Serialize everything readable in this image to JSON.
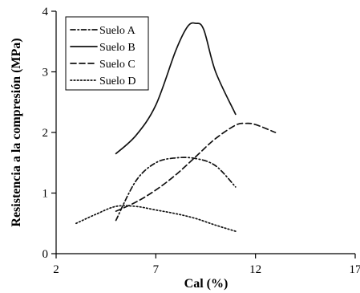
{
  "chart_data": {
    "type": "line",
    "xlabel": "Cal (%)",
    "ylabel": "Resistencia a la compresión (MPa)",
    "xlim": [
      2,
      17
    ],
    "ylim": [
      0,
      4
    ],
    "xticks": [
      "2",
      "7",
      "12",
      "17"
    ],
    "yticks": [
      "0",
      "1",
      "2",
      "3",
      "4"
    ],
    "legend_position": "top-left",
    "series": [
      {
        "name": "Suelo A",
        "dash": "dash-dot",
        "x": [
          5,
          6,
          7,
          8,
          9,
          10,
          11
        ],
        "y": [
          0.55,
          1.2,
          1.5,
          1.58,
          1.57,
          1.45,
          1.1
        ]
      },
      {
        "name": "Suelo B",
        "dash": "solid",
        "x": [
          5,
          6,
          7,
          8,
          8.6,
          9,
          9.4,
          10,
          11
        ],
        "y": [
          1.65,
          1.95,
          2.45,
          3.35,
          3.75,
          3.8,
          3.7,
          3.0,
          2.3
        ]
      },
      {
        "name": "Suelo C",
        "dash": "dashed",
        "x": [
          5,
          6,
          7,
          8,
          9,
          10,
          11,
          11.5,
          12,
          13
        ],
        "y": [
          0.7,
          0.85,
          1.05,
          1.3,
          1.6,
          1.9,
          2.12,
          2.15,
          2.13,
          2.0
        ]
      },
      {
        "name": "Suelo D",
        "dash": "dotted",
        "x": [
          3,
          4,
          5,
          6,
          7,
          8,
          9,
          10,
          11
        ],
        "y": [
          0.5,
          0.65,
          0.78,
          0.78,
          0.72,
          0.66,
          0.58,
          0.47,
          0.37
        ]
      }
    ]
  }
}
